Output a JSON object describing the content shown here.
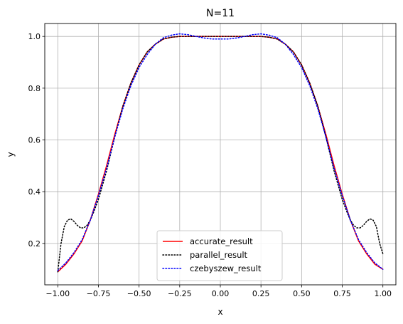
{
  "chart_data": {
    "type": "line",
    "title": "N=11",
    "xlabel": "x",
    "ylabel": "y",
    "xlim": [
      -1.08,
      1.08
    ],
    "ylim": [
      0.04,
      1.05
    ],
    "xticks": [
      -1.0,
      -0.75,
      -0.5,
      -0.25,
      0.0,
      0.25,
      0.5,
      0.75,
      1.0
    ],
    "xtick_labels": [
      "−1.00",
      "−0.75",
      "−0.50",
      "−0.25",
      "0.00",
      "0.25",
      "0.50",
      "0.75",
      "1.00"
    ],
    "yticks": [
      0.2,
      0.4,
      0.6,
      0.8,
      1.0
    ],
    "ytick_labels": [
      "0.2",
      "0.4",
      "0.6",
      "0.8",
      "1.0"
    ],
    "grid": true,
    "legend_position": "bottom-center",
    "series": [
      {
        "name": "accurate_result",
        "color": "#ff0000",
        "style": "solid",
        "x": [
          -1.0,
          -0.95,
          -0.9,
          -0.85,
          -0.8,
          -0.75,
          -0.7,
          -0.65,
          -0.6,
          -0.55,
          -0.5,
          -0.45,
          -0.4,
          -0.35,
          -0.3,
          -0.25,
          -0.2,
          -0.15,
          -0.1,
          -0.05,
          0.0,
          0.05,
          0.1,
          0.15,
          0.2,
          0.25,
          0.3,
          0.35,
          0.4,
          0.45,
          0.5,
          0.55,
          0.6,
          0.65,
          0.7,
          0.75,
          0.8,
          0.85,
          0.9,
          0.95,
          1.0
        ],
        "y": [
          0.09,
          0.12,
          0.16,
          0.21,
          0.29,
          0.39,
          0.5,
          0.62,
          0.73,
          0.82,
          0.89,
          0.94,
          0.97,
          0.99,
          0.997,
          1.0,
          1.0,
          1.0,
          1.0,
          1.0,
          1.0,
          1.0,
          1.0,
          1.0,
          1.0,
          1.0,
          0.997,
          0.99,
          0.97,
          0.94,
          0.89,
          0.82,
          0.73,
          0.62,
          0.5,
          0.39,
          0.29,
          0.21,
          0.16,
          0.12,
          0.1
        ]
      },
      {
        "name": "parallel_result",
        "color": "#000000",
        "style": "dotted",
        "x": [
          -1.0,
          -0.98,
          -0.96,
          -0.94,
          -0.92,
          -0.9,
          -0.88,
          -0.86,
          -0.84,
          -0.82,
          -0.8,
          -0.78,
          -0.75,
          -0.7,
          -0.65,
          -0.6,
          -0.55,
          -0.5,
          -0.45,
          -0.4,
          -0.35,
          -0.3,
          -0.25,
          -0.2,
          -0.15,
          -0.1,
          -0.05,
          0.0,
          0.05,
          0.1,
          0.15,
          0.2,
          0.25,
          0.3,
          0.35,
          0.4,
          0.45,
          0.5,
          0.55,
          0.6,
          0.65,
          0.7,
          0.75,
          0.78,
          0.8,
          0.82,
          0.84,
          0.86,
          0.88,
          0.9,
          0.92,
          0.94,
          0.96,
          0.98,
          1.0
        ],
        "y": [
          0.09,
          0.2,
          0.265,
          0.29,
          0.295,
          0.285,
          0.27,
          0.26,
          0.26,
          0.27,
          0.29,
          0.32,
          0.37,
          0.48,
          0.61,
          0.73,
          0.82,
          0.89,
          0.94,
          0.97,
          0.99,
          0.997,
          1.0,
          1.0,
          1.0,
          1.0,
          1.0,
          1.0,
          1.0,
          1.0,
          1.0,
          1.0,
          1.0,
          0.997,
          0.99,
          0.97,
          0.94,
          0.89,
          0.82,
          0.73,
          0.61,
          0.48,
          0.37,
          0.32,
          0.29,
          0.27,
          0.26,
          0.26,
          0.27,
          0.285,
          0.295,
          0.29,
          0.265,
          0.2,
          0.16
        ]
      },
      {
        "name": "czebyszew_result",
        "color": "#0000ff",
        "style": "dotted",
        "x": [
          -1.0,
          -0.95,
          -0.9,
          -0.85,
          -0.8,
          -0.75,
          -0.7,
          -0.65,
          -0.6,
          -0.55,
          -0.5,
          -0.45,
          -0.4,
          -0.35,
          -0.3,
          -0.25,
          -0.2,
          -0.15,
          -0.1,
          -0.05,
          0.0,
          0.05,
          0.1,
          0.15,
          0.2,
          0.25,
          0.3,
          0.35,
          0.4,
          0.45,
          0.5,
          0.55,
          0.6,
          0.65,
          0.7,
          0.75,
          0.8,
          0.85,
          0.9,
          0.95,
          1.0
        ],
        "y": [
          0.095,
          0.125,
          0.165,
          0.215,
          0.29,
          0.385,
          0.49,
          0.61,
          0.72,
          0.81,
          0.88,
          0.93,
          0.97,
          0.995,
          1.005,
          1.01,
          1.007,
          1.0,
          0.994,
          0.99,
          0.99,
          0.99,
          0.994,
          1.0,
          1.007,
          1.01,
          1.005,
          0.995,
          0.97,
          0.93,
          0.88,
          0.81,
          0.72,
          0.61,
          0.49,
          0.385,
          0.29,
          0.215,
          0.165,
          0.125,
          0.1
        ]
      }
    ]
  }
}
